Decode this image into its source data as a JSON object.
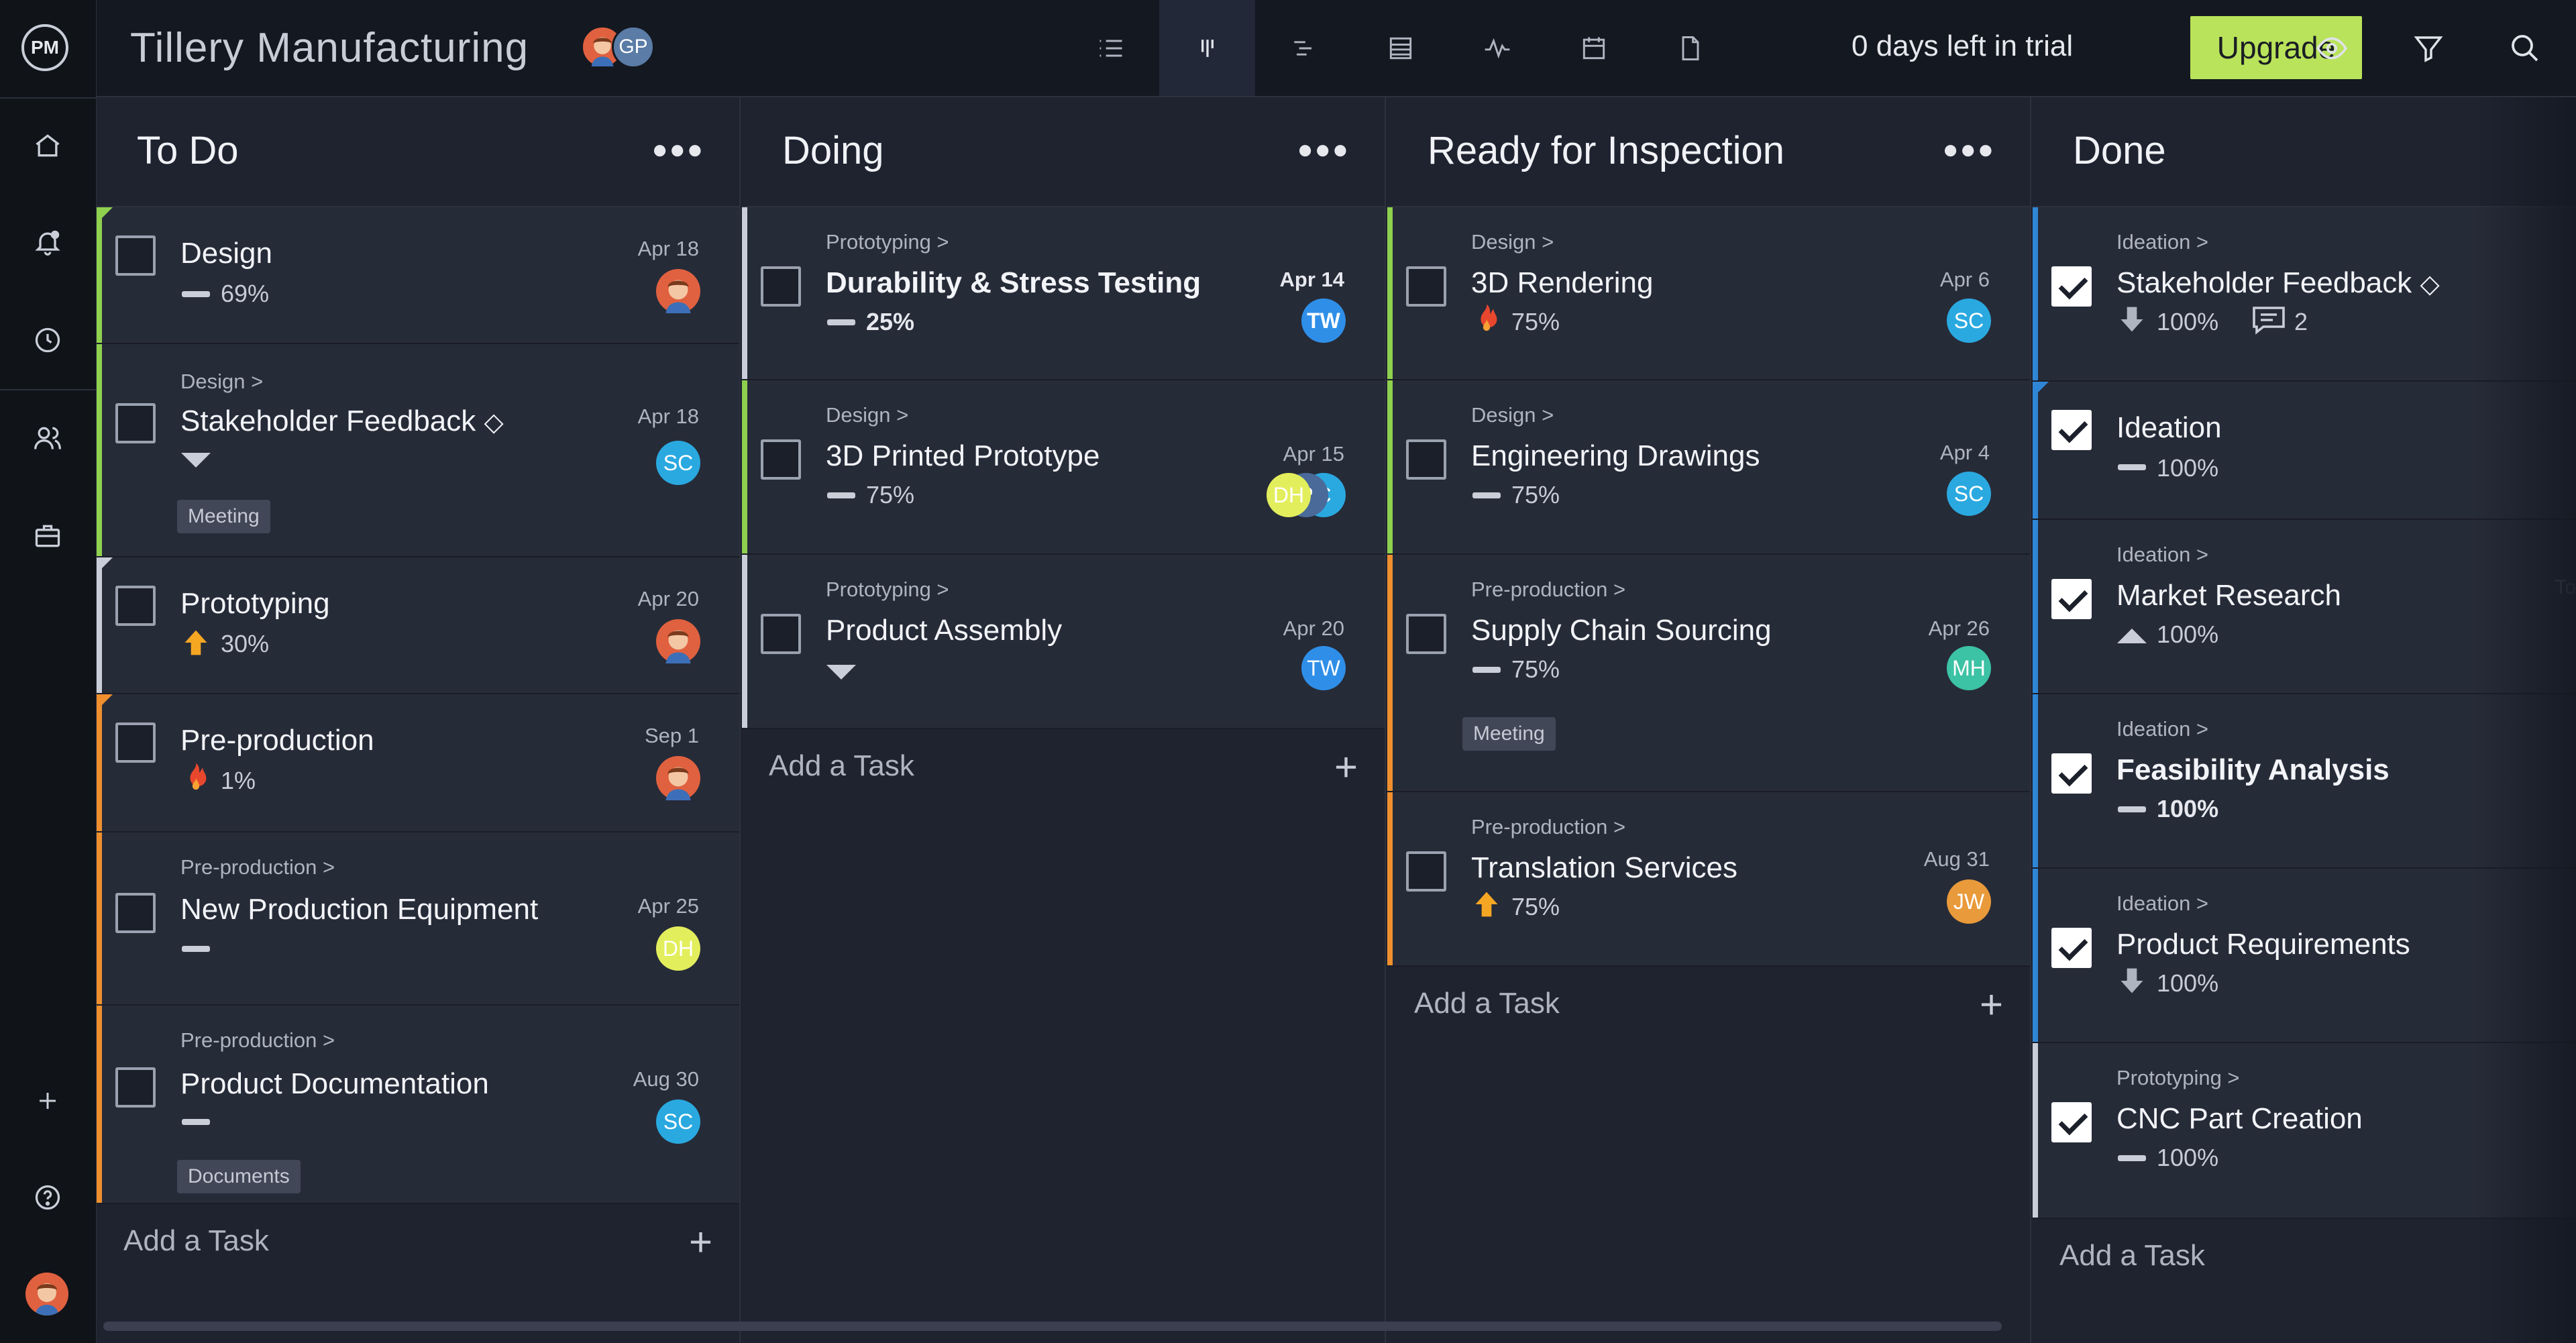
{
  "app": {
    "logo": "PM",
    "project_title": "Tillery Manufacturing",
    "trial_text": "0 days left in trial",
    "upgrade_label": "Upgrade"
  },
  "project_members": [
    "GP"
  ],
  "add_task_label": "Add a Task",
  "colors": {
    "green": "#8fd14f",
    "orange": "#ef8f2e",
    "blue": "#2f86d6",
    "gray": "#c9ced8",
    "upgrade": "#b9e35a"
  },
  "columns": [
    {
      "title": "To Do",
      "cards": [
        {
          "name": "Design",
          "date": "Apr 18",
          "progress": "69%",
          "priority": "dash",
          "assignee": "face"
        },
        {
          "parent": "Design >",
          "name": "Stakeholder Feedback",
          "milestone": true,
          "date": "Apr 18",
          "progress": "",
          "priority": "down-caret",
          "assignee": "SC",
          "tag": "Meeting"
        },
        {
          "name": "Prototyping",
          "date": "Apr 20",
          "progress": "30%",
          "priority": "up-arrow",
          "assignee": "face"
        },
        {
          "name": "Pre-production",
          "date": "Sep 1",
          "progress": "1%",
          "priority": "fire",
          "assignee": "face"
        },
        {
          "parent": "Pre-production >",
          "name": "New Production Equipment",
          "date": "Apr 25",
          "progress": "",
          "priority": "dash",
          "assignee": "DH"
        },
        {
          "parent": "Pre-production >",
          "name": "Product Documentation",
          "date": "Aug 30",
          "progress": "",
          "priority": "dash",
          "assignee": "SC",
          "tag": "Documents"
        }
      ]
    },
    {
      "title": "Doing",
      "cards": [
        {
          "parent": "Prototyping >",
          "name": "Durability & Stress Testing",
          "date": "Apr 14",
          "progress": "25%",
          "priority": "dash",
          "assignee": "TW"
        },
        {
          "parent": "Design >",
          "name": "3D Printed Prototype",
          "date": "Apr 15",
          "progress": "75%",
          "priority": "dash",
          "assignees": [
            "DH",
            "P",
            "C"
          ]
        },
        {
          "parent": "Prototyping >",
          "name": "Product Assembly",
          "date": "Apr 20",
          "progress": "",
          "priority": "down-caret",
          "assignee": "TW"
        }
      ]
    },
    {
      "title": "Ready for Inspection",
      "cards": [
        {
          "parent": "Design >",
          "name": "3D Rendering",
          "date": "Apr 6",
          "progress": "75%",
          "priority": "fire",
          "assignee": "SC"
        },
        {
          "parent": "Design >",
          "name": "Engineering Drawings",
          "date": "Apr 4",
          "progress": "75%",
          "priority": "dash",
          "assignee": "SC"
        },
        {
          "parent": "Pre-production >",
          "name": "Supply Chain Sourcing",
          "date": "Apr 26",
          "progress": "75%",
          "priority": "dash",
          "assignee": "MH",
          "tag": "Meeting"
        },
        {
          "parent": "Pre-production >",
          "name": "Translation Services",
          "date": "Aug 31",
          "progress": "75%",
          "priority": "up-arrow",
          "assignee": "JW"
        }
      ]
    },
    {
      "title": "Done",
      "cards": [
        {
          "parent": "Ideation >",
          "name": "Stakeholder Feedback",
          "milestone": true,
          "progress": "100%",
          "priority": "down-arrow",
          "comments": "2"
        },
        {
          "name": "Ideation",
          "progress": "100%",
          "priority": "dash"
        },
        {
          "parent": "Ideation >",
          "name": "Market Research",
          "progress": "100%",
          "priority": "up-caret",
          "peek": "To"
        },
        {
          "parent": "Ideation >",
          "name": "Feasibility Analysis",
          "progress": "100%",
          "priority": "dash"
        },
        {
          "parent": "Ideation >",
          "name": "Product Requirements",
          "progress": "100%",
          "priority": "down-arrow"
        },
        {
          "parent": "Prototyping >",
          "name": "CNC Part Creation",
          "progress": "100%",
          "priority": "dash"
        }
      ]
    }
  ]
}
